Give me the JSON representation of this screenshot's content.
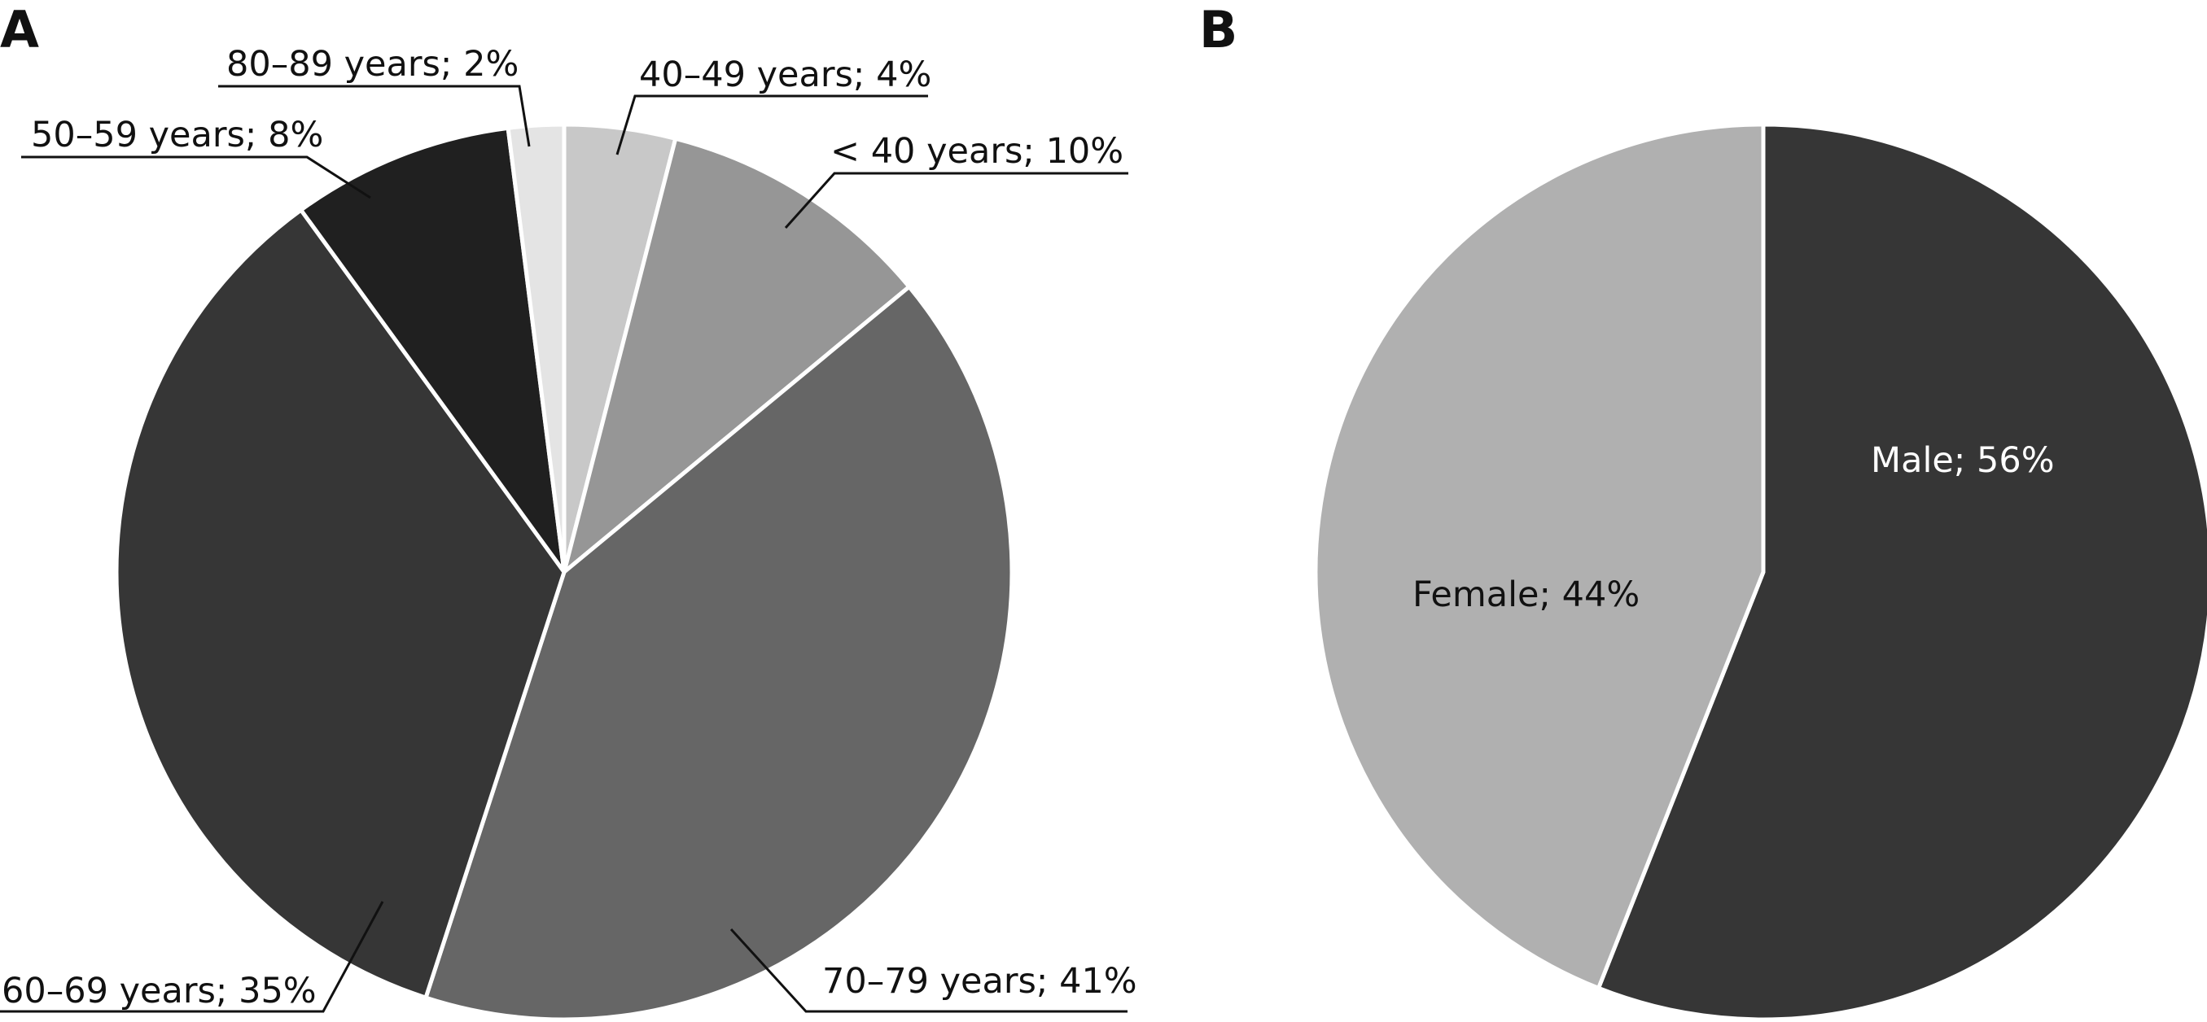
{
  "chart_data": [
    {
      "type": "pie",
      "panel_label": "A",
      "title": "",
      "start_angle_deg": 0,
      "direction": "clockwise",
      "slices": [
        {
          "label": "40–49 years; 4%",
          "value": 4,
          "color": "#c8c8c8"
        },
        {
          "label": "< 40 years; 10%",
          "value": 10,
          "color": "#969696"
        },
        {
          "label": "70–79 years; 41%",
          "value": 41,
          "color": "#666666"
        },
        {
          "label": "60–69 years; 35%",
          "value": 35,
          "color": "#363636"
        },
        {
          "label": "50–59 years; 8%",
          "value": 8,
          "color": "#202020"
        },
        {
          "label": "80–89 years; 2%",
          "value": 2,
          "color": "#e4e4e4"
        }
      ]
    },
    {
      "type": "pie",
      "panel_label": "B",
      "title": "",
      "start_angle_deg": 0,
      "direction": "clockwise",
      "slices": [
        {
          "label": "Male; 56%",
          "value": 56,
          "color": "#363636",
          "label_color": "#ffffff"
        },
        {
          "label": "Female; 44%",
          "value": 44,
          "color": "#b0b0b0",
          "label_color": "#111111"
        }
      ]
    }
  ]
}
